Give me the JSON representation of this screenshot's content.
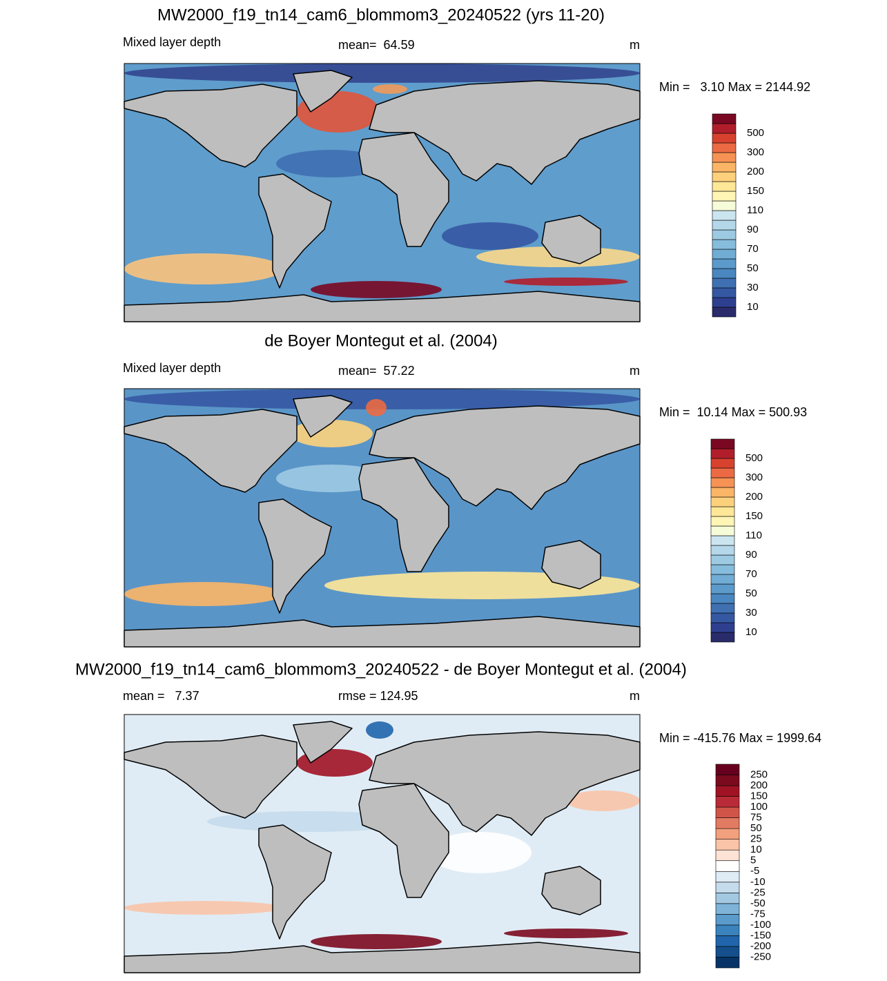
{
  "panels": [
    {
      "title": "MW2000_f19_tn14_cam6_blommom3_20240522 (yrs 11-20)",
      "left_label": "Mixed layer depth",
      "center_label": "mean=  64.59",
      "units": "m",
      "min_max": "Min =   3.10 Max = 2144.92",
      "colorbar": {
        "labels": [
          "10",
          "30",
          "50",
          "70",
          "90",
          "110",
          "150",
          "200",
          "300",
          "500"
        ],
        "colors": [
          "#2a2b6a",
          "#2f3f8f",
          "#3558a3",
          "#3f70b2",
          "#4a86bf",
          "#5b9acb",
          "#70acd4",
          "#86bcdc",
          "#9dcae3",
          "#b4d8ea",
          "#cbe5f0",
          "#f6fbd8",
          "#fff5b5",
          "#fee797",
          "#fdd17c",
          "#fbb566",
          "#f69253",
          "#ec6a43",
          "#d7422f",
          "#b11e2b",
          "#7a0822"
        ]
      }
    },
    {
      "title": "de Boyer Montegut et al. (2004)",
      "left_label": "Mixed layer depth",
      "center_label": "mean=  57.22",
      "units": "m",
      "min_max": "Min =  10.14 Max = 500.93",
      "colorbar": {
        "labels": [
          "10",
          "30",
          "50",
          "70",
          "90",
          "110",
          "150",
          "200",
          "300",
          "500"
        ],
        "colors": [
          "#2a2b6a",
          "#2f3f8f",
          "#3558a3",
          "#3f70b2",
          "#4a86bf",
          "#5b9acb",
          "#70acd4",
          "#86bcdc",
          "#9dcae3",
          "#b4d8ea",
          "#cbe5f0",
          "#f6fbd8",
          "#fff5b5",
          "#fee797",
          "#fdd17c",
          "#fbb566",
          "#f69253",
          "#ec6a43",
          "#d7422f",
          "#b11e2b",
          "#7a0822"
        ]
      }
    },
    {
      "title": "MW2000_f19_tn14_cam6_blommom3_20240522 - de Boyer Montegut et al. (2004)",
      "left_label": "mean =   7.37",
      "center_label": "rmse = 124.95",
      "units": "m",
      "min_max": "Min = -415.76 Max = 1999.64",
      "colorbar": {
        "labels": [
          "-250",
          "-200",
          "-150",
          "-100",
          "-75",
          "-50",
          "-25",
          "-10",
          "-5",
          "5",
          "10",
          "25",
          "50",
          "75",
          "100",
          "150",
          "200",
          "250"
        ],
        "colors": [
          "#083366",
          "#154f8c",
          "#2166ac",
          "#3a83bd",
          "#5a9bcb",
          "#7fb3d7",
          "#a3c8e2",
          "#c5dcec",
          "#e0ecf5",
          "#ffffff",
          "#fde3d5",
          "#f9c4a8",
          "#f2a07e",
          "#e27b62",
          "#d05548",
          "#b92b36",
          "#a01325",
          "#7c0a1f",
          "#67001f"
        ]
      }
    }
  ]
}
